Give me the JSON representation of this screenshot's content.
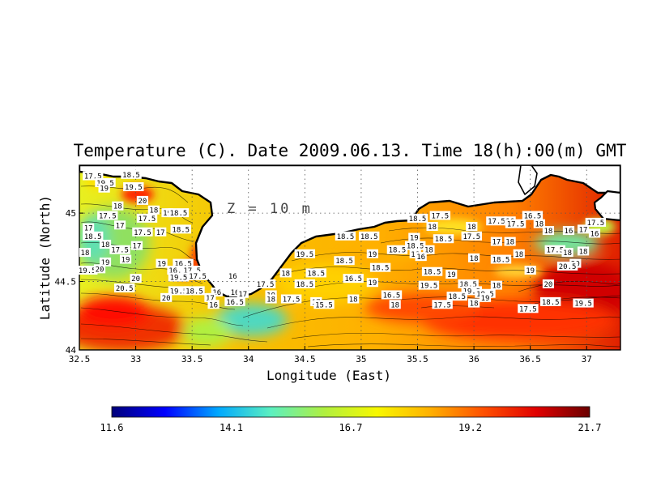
{
  "chart_data": {
    "type": "heatmap",
    "title": "Temperature (C). Date 2009.06.13. Time 18(h):00(m) GMT",
    "xlabel": "Longitude (East)",
    "ylabel": "Latitude (North)",
    "xlim": [
      32.5,
      37.3
    ],
    "ylim": [
      44.0,
      45.35
    ],
    "x_ticks": [
      "32.5",
      "33",
      "33.5",
      "34",
      "34.5",
      "35",
      "35.5",
      "36",
      "36.5",
      "37"
    ],
    "y_ticks": [
      "44",
      "44.5",
      "45"
    ],
    "grid": "dotted",
    "annotation": "Z = 10 m",
    "colorbar": {
      "min": 11.6,
      "max": 21.7,
      "ticks": [
        "11.6",
        "14.1",
        "16.7",
        "19.2",
        "21.7"
      ],
      "colors": [
        "#00007a",
        "#0000ff",
        "#00a8ff",
        "#5cf0c0",
        "#b0f040",
        "#f8f800",
        "#ffb000",
        "#ff5000",
        "#e00000",
        "#6a0000"
      ]
    },
    "contour_labels": [
      {
        "lon": 32.62,
        "lat": 45.27,
        "text": "17.5"
      },
      {
        "lon": 32.73,
        "lat": 45.22,
        "text": "19.5"
      },
      {
        "lon": 32.72,
        "lat": 45.18,
        "text": "19"
      },
      {
        "lon": 32.96,
        "lat": 45.28,
        "text": "18.5"
      },
      {
        "lon": 32.98,
        "lat": 45.19,
        "text": "19.5"
      },
      {
        "lon": 33.06,
        "lat": 45.09,
        "text": "20"
      },
      {
        "lon": 32.84,
        "lat": 45.05,
        "text": "18"
      },
      {
        "lon": 33.16,
        "lat": 45.02,
        "text": "18"
      },
      {
        "lon": 33.28,
        "lat": 45.0,
        "text": "19"
      },
      {
        "lon": 33.38,
        "lat": 45.0,
        "text": "18.5"
      },
      {
        "lon": 32.75,
        "lat": 44.98,
        "text": "17.5"
      },
      {
        "lon": 33.1,
        "lat": 44.96,
        "text": "17.5"
      },
      {
        "lon": 32.58,
        "lat": 44.89,
        "text": "17"
      },
      {
        "lon": 32.86,
        "lat": 44.91,
        "text": "17"
      },
      {
        "lon": 33.06,
        "lat": 44.86,
        "text": "17.5"
      },
      {
        "lon": 33.22,
        "lat": 44.86,
        "text": "17"
      },
      {
        "lon": 33.4,
        "lat": 44.88,
        "text": "18.5"
      },
      {
        "lon": 32.62,
        "lat": 44.83,
        "text": "18.5"
      },
      {
        "lon": 32.73,
        "lat": 44.77,
        "text": "18"
      },
      {
        "lon": 32.86,
        "lat": 44.73,
        "text": "17.5"
      },
      {
        "lon": 33.01,
        "lat": 44.76,
        "text": "17"
      },
      {
        "lon": 32.55,
        "lat": 44.71,
        "text": "18"
      },
      {
        "lon": 32.73,
        "lat": 44.64,
        "text": "19"
      },
      {
        "lon": 32.91,
        "lat": 44.66,
        "text": "19"
      },
      {
        "lon": 32.57,
        "lat": 44.58,
        "text": "19.5"
      },
      {
        "lon": 32.68,
        "lat": 44.59,
        "text": "20"
      },
      {
        "lon": 32.9,
        "lat": 44.45,
        "text": "20.5"
      },
      {
        "lon": 33.0,
        "lat": 44.52,
        "text": "20"
      },
      {
        "lon": 33.23,
        "lat": 44.63,
        "text": "19"
      },
      {
        "lon": 33.42,
        "lat": 44.63,
        "text": "16.5"
      },
      {
        "lon": 33.37,
        "lat": 44.58,
        "text": "16.5"
      },
      {
        "lon": 33.5,
        "lat": 44.58,
        "text": "17.5"
      },
      {
        "lon": 33.38,
        "lat": 44.53,
        "text": "19.5"
      },
      {
        "lon": 33.55,
        "lat": 44.54,
        "text": "17.5"
      },
      {
        "lon": 33.86,
        "lat": 44.54,
        "text": "16"
      },
      {
        "lon": 33.38,
        "lat": 44.43,
        "text": "19.5"
      },
      {
        "lon": 33.52,
        "lat": 44.43,
        "text": "18.5"
      },
      {
        "lon": 33.72,
        "lat": 44.42,
        "text": "16"
      },
      {
        "lon": 33.88,
        "lat": 44.42,
        "text": "16"
      },
      {
        "lon": 33.27,
        "lat": 44.38,
        "text": "20"
      },
      {
        "lon": 33.66,
        "lat": 44.38,
        "text": "17"
      },
      {
        "lon": 33.95,
        "lat": 44.41,
        "text": "17"
      },
      {
        "lon": 33.88,
        "lat": 44.35,
        "text": "16.5"
      },
      {
        "lon": 33.69,
        "lat": 44.33,
        "text": "16"
      },
      {
        "lon": 34.15,
        "lat": 44.48,
        "text": "17.5"
      },
      {
        "lon": 34.2,
        "lat": 44.4,
        "text": "19"
      },
      {
        "lon": 34.2,
        "lat": 44.37,
        "text": "18"
      },
      {
        "lon": 34.38,
        "lat": 44.37,
        "text": "17.5"
      },
      {
        "lon": 34.5,
        "lat": 44.48,
        "text": "18.5"
      },
      {
        "lon": 34.33,
        "lat": 44.56,
        "text": "18"
      },
      {
        "lon": 34.5,
        "lat": 44.7,
        "text": "19.5"
      },
      {
        "lon": 34.6,
        "lat": 44.56,
        "text": "18.5"
      },
      {
        "lon": 34.6,
        "lat": 44.35,
        "text": "17"
      },
      {
        "lon": 34.67,
        "lat": 44.33,
        "text": "15.5"
      },
      {
        "lon": 34.86,
        "lat": 44.83,
        "text": "18.5"
      },
      {
        "lon": 34.85,
        "lat": 44.65,
        "text": "18.5"
      },
      {
        "lon": 35.07,
        "lat": 44.83,
        "text": "18.5"
      },
      {
        "lon": 35.1,
        "lat": 44.7,
        "text": "19"
      },
      {
        "lon": 35.32,
        "lat": 44.73,
        "text": "18.5"
      },
      {
        "lon": 35.17,
        "lat": 44.6,
        "text": "18.5"
      },
      {
        "lon": 34.93,
        "lat": 44.52,
        "text": "16.5"
      },
      {
        "lon": 35.1,
        "lat": 44.49,
        "text": "19"
      },
      {
        "lon": 34.93,
        "lat": 44.37,
        "text": "18"
      },
      {
        "lon": 35.27,
        "lat": 44.4,
        "text": "16.5"
      },
      {
        "lon": 35.3,
        "lat": 44.33,
        "text": "18"
      },
      {
        "lon": 35.48,
        "lat": 44.76,
        "text": "18.5"
      },
      {
        "lon": 35.48,
        "lat": 44.7,
        "text": "18"
      },
      {
        "lon": 35.5,
        "lat": 44.96,
        "text": "18.5"
      },
      {
        "lon": 35.63,
        "lat": 44.9,
        "text": "18"
      },
      {
        "lon": 35.7,
        "lat": 44.98,
        "text": "17.5"
      },
      {
        "lon": 35.73,
        "lat": 44.81,
        "text": "18.5"
      },
      {
        "lon": 35.6,
        "lat": 44.73,
        "text": "18"
      },
      {
        "lon": 35.47,
        "lat": 44.82,
        "text": "19"
      },
      {
        "lon": 35.53,
        "lat": 44.68,
        "text": "16"
      },
      {
        "lon": 35.63,
        "lat": 44.57,
        "text": "18.5"
      },
      {
        "lon": 35.8,
        "lat": 44.55,
        "text": "19"
      },
      {
        "lon": 35.6,
        "lat": 44.47,
        "text": "19.5"
      },
      {
        "lon": 35.95,
        "lat": 44.48,
        "text": "18.5"
      },
      {
        "lon": 35.98,
        "lat": 44.43,
        "text": "19.5"
      },
      {
        "lon": 36.1,
        "lat": 44.41,
        "text": "19.5"
      },
      {
        "lon": 36.1,
        "lat": 44.38,
        "text": "19"
      },
      {
        "lon": 35.85,
        "lat": 44.39,
        "text": "18.5"
      },
      {
        "lon": 36.2,
        "lat": 44.47,
        "text": "18"
      },
      {
        "lon": 35.72,
        "lat": 44.33,
        "text": "17.5"
      },
      {
        "lon": 36.0,
        "lat": 44.34,
        "text": "18"
      },
      {
        "lon": 35.98,
        "lat": 44.9,
        "text": "18"
      },
      {
        "lon": 35.98,
        "lat": 44.83,
        "text": "17.5"
      },
      {
        "lon": 36.2,
        "lat": 44.79,
        "text": "17"
      },
      {
        "lon": 36.2,
        "lat": 44.94,
        "text": "17.5"
      },
      {
        "lon": 36.32,
        "lat": 44.94,
        "text": "16"
      },
      {
        "lon": 36.37,
        "lat": 44.92,
        "text": "17.5"
      },
      {
        "lon": 36.52,
        "lat": 44.98,
        "text": "16.5"
      },
      {
        "lon": 36.58,
        "lat": 44.92,
        "text": "18"
      },
      {
        "lon": 36.66,
        "lat": 44.87,
        "text": "18"
      },
      {
        "lon": 36.84,
        "lat": 44.87,
        "text": "16"
      },
      {
        "lon": 36.97,
        "lat": 44.88,
        "text": "17"
      },
      {
        "lon": 37.08,
        "lat": 44.93,
        "text": "17.5"
      },
      {
        "lon": 37.07,
        "lat": 44.85,
        "text": "16"
      },
      {
        "lon": 36.32,
        "lat": 44.79,
        "text": "18"
      },
      {
        "lon": 36.24,
        "lat": 44.66,
        "text": "18.5"
      },
      {
        "lon": 36.0,
        "lat": 44.67,
        "text": "18"
      },
      {
        "lon": 36.4,
        "lat": 44.7,
        "text": "18"
      },
      {
        "lon": 36.72,
        "lat": 44.73,
        "text": "17.5"
      },
      {
        "lon": 36.83,
        "lat": 44.71,
        "text": "18"
      },
      {
        "lon": 36.97,
        "lat": 44.72,
        "text": "18"
      },
      {
        "lon": 36.9,
        "lat": 44.63,
        "text": "20"
      },
      {
        "lon": 36.5,
        "lat": 44.58,
        "text": "19"
      },
      {
        "lon": 36.83,
        "lat": 44.61,
        "text": "20.5"
      },
      {
        "lon": 36.66,
        "lat": 44.48,
        "text": "20"
      },
      {
        "lon": 36.68,
        "lat": 44.35,
        "text": "18.5"
      },
      {
        "lon": 36.97,
        "lat": 44.34,
        "text": "19.5"
      },
      {
        "lon": 36.48,
        "lat": 44.3,
        "text": "17.5"
      }
    ]
  }
}
